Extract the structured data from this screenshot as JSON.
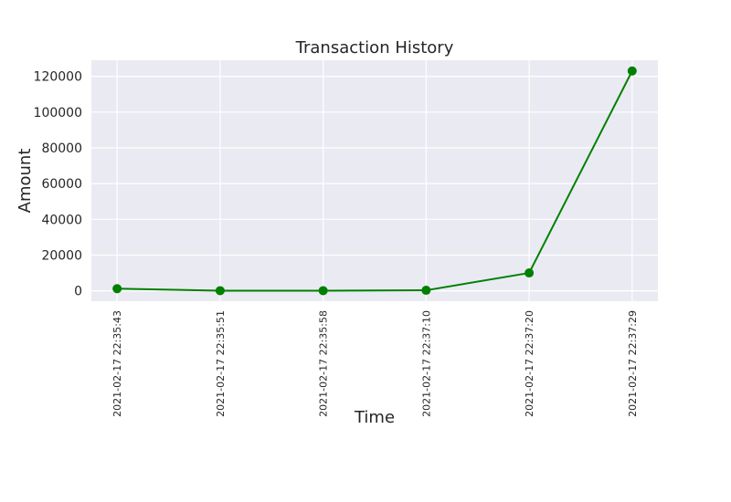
{
  "chart_data": {
    "type": "line",
    "title": "Transaction History",
    "xlabel": "Time",
    "ylabel": "Amount",
    "x": [
      "2021-02-17 22:35:43",
      "2021-02-17 22:35:51",
      "2021-02-17 22:35:58",
      "2021-02-17 22:37:10",
      "2021-02-17 22:37:20",
      "2021-02-17 22:37:29"
    ],
    "series": [
      {
        "values": [
          1200,
          100,
          100,
          300,
          10000,
          123000
        ],
        "color": "#008000",
        "marker": "circle"
      }
    ],
    "ylim": [
      -5800,
      129000
    ],
    "yticks": [
      0,
      20000,
      40000,
      60000,
      80000,
      100000,
      120000
    ],
    "grid": true,
    "background": "#eaeaf2",
    "gridColor": "#ffffff"
  }
}
